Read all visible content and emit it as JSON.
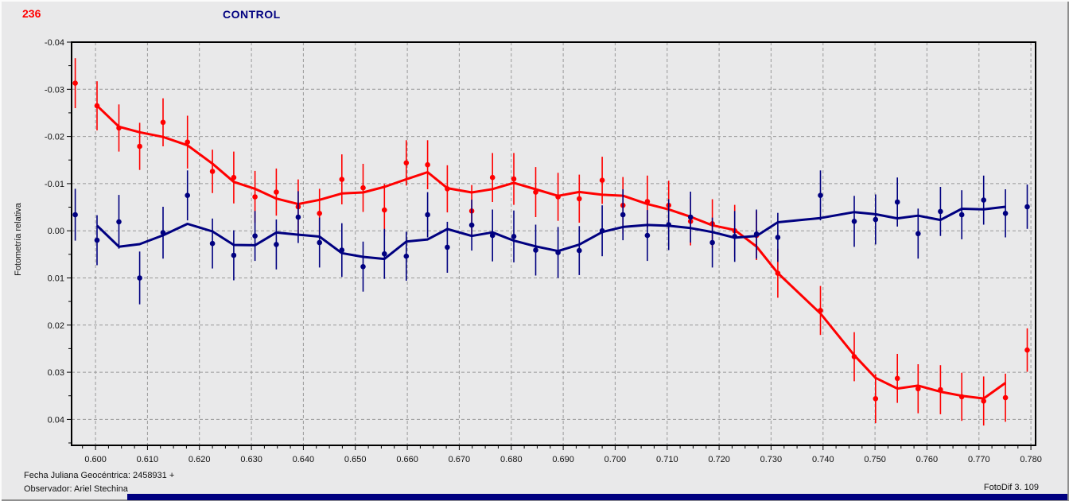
{
  "header": {
    "object_number": "236",
    "title": "CONTROL"
  },
  "footer": {
    "line1": "Fecha Juliana Geocéntrica: 2458931 +",
    "line2": "Observador: Ariel Stechina",
    "app_version": "FotoDif 3. 109"
  },
  "colors": {
    "background": "#e9e9ea",
    "red_series": "#ff0000",
    "blue_series": "#000080",
    "grid": "#999999",
    "frame": "#000000",
    "status_bar": "#000080"
  },
  "chart_data": {
    "type": "scatter",
    "title": "CONTROL",
    "y_axis_title": "Fotometría relativa",
    "grid": {
      "dashed": true,
      "on": true
    },
    "x_axis": {
      "min": 0.5954,
      "max": 0.7809,
      "tick_min": 0.6,
      "tick_max": 0.78,
      "tick_step": 0.01,
      "minor_step": 0.0025,
      "tick_labels": [
        "0.600",
        "0.610",
        "0.620",
        "0.630",
        "0.640",
        "0.650",
        "0.660",
        "0.670",
        "0.680",
        "0.690",
        "0.700",
        "0.710",
        "0.720",
        "0.730",
        "0.740",
        "0.750",
        "0.760",
        "0.770",
        "0.780"
      ]
    },
    "y_axis": {
      "top_value": -0.04,
      "bottom_value": 0.0455,
      "tick_step": 0.01,
      "minor_step": 0.005,
      "direction": "inverted (negative values at top)",
      "tick_labels": [
        "-0.04",
        "-0.03",
        "-0.02",
        "-0.01",
        "0.00",
        "0.01",
        "0.02",
        "0.03",
        "0.04"
      ]
    },
    "smoothing": "moving_average_3_point_lines",
    "series": [
      {
        "name": "red",
        "color": "#ff0000",
        "x": [
          0.5961,
          0.6003,
          0.6045,
          0.6085,
          0.613,
          0.6177,
          0.6225,
          0.6266,
          0.6307,
          0.6348,
          0.639,
          0.6431,
          0.6474,
          0.6515,
          0.6556,
          0.6598,
          0.6639,
          0.6677,
          0.6724,
          0.6764,
          0.6805,
          0.6847,
          0.689,
          0.6931,
          0.6975,
          0.7015,
          0.7062,
          0.7103,
          0.7145,
          0.7187,
          0.723,
          0.7272,
          0.7313,
          0.7395,
          0.746,
          0.7501,
          0.7543,
          0.7583,
          0.7626,
          0.7667,
          0.7709,
          0.7751,
          0.7793
        ],
        "y": [
          -0.0313,
          -0.0265,
          -0.0218,
          -0.0179,
          -0.023,
          -0.0188,
          -0.0126,
          -0.0113,
          -0.0072,
          -0.0082,
          -0.0051,
          -0.0037,
          -0.0109,
          -0.0091,
          -0.0044,
          -0.0144,
          -0.014,
          -0.0089,
          -0.0042,
          -0.0113,
          -0.011,
          -0.0082,
          -0.0072,
          -0.0068,
          -0.0107,
          -0.0054,
          -0.0062,
          -0.0054,
          -0.002,
          -0.0015,
          0.0,
          0.001,
          0.009,
          0.0169,
          0.0267,
          0.0356,
          0.0313,
          0.0335,
          0.0337,
          0.0352,
          0.0361,
          0.0354,
          0.0253
        ],
        "err": [
          0.0053,
          0.0052,
          0.005,
          0.005,
          0.0051,
          0.0056,
          0.0046,
          0.0055,
          0.0055,
          0.005,
          0.0058,
          0.0052,
          0.0053,
          0.0051,
          0.0055,
          0.0048,
          0.0052,
          0.005,
          0.0055,
          0.0052,
          0.0055,
          0.0053,
          0.0051,
          0.0051,
          0.005,
          0.006,
          0.0055,
          0.0052,
          0.0051,
          0.0052,
          0.0055,
          0.0052,
          0.0052,
          0.0052,
          0.0052,
          0.0052,
          0.0052,
          0.0052,
          0.0052,
          0.0051,
          0.0052,
          0.0051,
          0.0046
        ]
      },
      {
        "name": "blue",
        "color": "#000080",
        "x": [
          0.5961,
          0.6003,
          0.6045,
          0.6085,
          0.613,
          0.6177,
          0.6225,
          0.6266,
          0.6307,
          0.6348,
          0.639,
          0.6431,
          0.6474,
          0.6515,
          0.6556,
          0.6598,
          0.6639,
          0.6677,
          0.6724,
          0.6764,
          0.6805,
          0.6847,
          0.689,
          0.6931,
          0.6975,
          0.7015,
          0.7062,
          0.7103,
          0.7145,
          0.7187,
          0.723,
          0.7272,
          0.7313,
          0.7395,
          0.746,
          0.7501,
          0.7543,
          0.7583,
          0.7626,
          0.7667,
          0.7709,
          0.7751,
          0.7793
        ],
        "y": [
          -0.0034,
          0.002,
          -0.0019,
          0.01,
          0.0004,
          -0.0075,
          0.0027,
          0.0052,
          0.0011,
          0.0029,
          -0.0029,
          0.0025,
          0.0041,
          0.0076,
          0.0049,
          0.0054,
          -0.0034,
          0.0035,
          -0.0012,
          0.001,
          0.0012,
          0.0041,
          0.0046,
          0.0042,
          0.0,
          -0.0034,
          0.001,
          -0.0013,
          -0.0029,
          0.0025,
          0.0012,
          0.0007,
          0.0014,
          -0.0075,
          -0.002,
          -0.0024,
          -0.0061,
          0.0006,
          -0.0041,
          -0.0034,
          -0.0065,
          -0.0037,
          -0.0051
        ],
        "err": [
          0.0055,
          0.0053,
          0.0057,
          0.0056,
          0.0055,
          0.0053,
          0.0053,
          0.0053,
          0.0053,
          0.0053,
          0.0055,
          0.0053,
          0.0057,
          0.0053,
          0.0053,
          0.0052,
          0.0048,
          0.0054,
          0.0054,
          0.0055,
          0.0055,
          0.0054,
          0.0054,
          0.0052,
          0.0054,
          0.0054,
          0.0054,
          0.0054,
          0.0054,
          0.0053,
          0.0054,
          0.0052,
          0.0052,
          0.0053,
          0.0054,
          0.0053,
          0.0052,
          0.0053,
          0.0052,
          0.0052,
          0.0052,
          0.0051,
          0.0047
        ]
      }
    ]
  }
}
